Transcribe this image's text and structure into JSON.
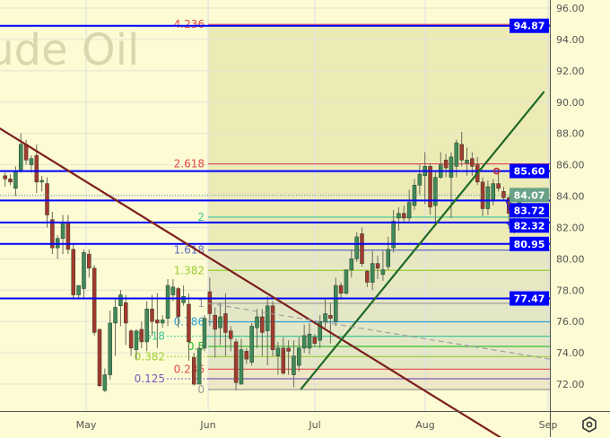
{
  "watermark": "Crude Oil",
  "colors": {
    "background": "#fdfbd3",
    "fib_zone": "#ecebb6",
    "up_candle": "#3f8a5a",
    "down_candle": "#a33a2e",
    "horizontal_level": "#0000ff",
    "last_price_box": "#6aa287",
    "down_trendline": "#7b1e1e",
    "up_trendline": "#1f6a24",
    "dashed_trendline": "#a0a0a0"
  },
  "chart_data": {
    "type": "candlestick",
    "title": "",
    "ylim": [
      71.0,
      96.6
    ],
    "y_ticks": [
      "96.00",
      "94.00",
      "92.00",
      "90.00",
      "88.00",
      "86.00",
      "84.00",
      "82.00",
      "80.00",
      "78.00",
      "76.00",
      "74.00",
      "72.00"
    ],
    "x_ticks": [
      "May",
      "Jun",
      "Jul",
      "Aug",
      "Sep"
    ],
    "grid": true,
    "last_price": "84.07",
    "horizontal_levels": [
      "94.87",
      "85.60",
      "83.72",
      "82.32",
      "80.95",
      "77.47"
    ],
    "fibonacci": {
      "start_price": 71.66,
      "end_price": 77.16,
      "levels": [
        {
          "label": "0",
          "ratio": 0,
          "color": "#9a9a9a"
        },
        {
          "label": "0.125",
          "ratio": 0.125,
          "color": "#7e57c2"
        },
        {
          "label": "0.236",
          "ratio": 0.236,
          "color": "#e04848"
        },
        {
          "label": "0.382",
          "ratio": 0.382,
          "color": "#9acd32"
        },
        {
          "label": "0.5",
          "ratio": 0.5,
          "color": "#22bb22"
        },
        {
          "label": "0.618",
          "ratio": 0.618,
          "color": "#3cc896"
        },
        {
          "label": "0.786",
          "ratio": 0.786,
          "color": "#2e9fd6"
        },
        {
          "label": "1",
          "ratio": 1,
          "color": "#9a9a9a"
        },
        {
          "label": "1.382",
          "ratio": 1.382,
          "color": "#9acd32"
        },
        {
          "label": "1.618",
          "ratio": 1.618,
          "color": "#5c6bc0"
        },
        {
          "label": "2",
          "ratio": 2,
          "color": "#3cc896"
        },
        {
          "label": "2.618",
          "ratio": 2.618,
          "color": "#e04848"
        },
        {
          "label": "4.236",
          "ratio": 4.236,
          "color": "#e04848"
        }
      ]
    },
    "trendlines": [
      {
        "name": "down",
        "from": [
          "2022-04-09",
          88.33
        ],
        "to": [
          "2022-08-20",
          68.6
        ],
        "style": "solid"
      },
      {
        "name": "up",
        "from": [
          "2022-06-27",
          71.66
        ],
        "to": [
          "2022-08-31",
          90.67
        ],
        "style": "solid"
      },
      {
        "name": "dashed",
        "from": [
          "2022-06-01",
          77.16
        ],
        "to": [
          "2022-09-16",
          73.0
        ],
        "style": "dashed"
      }
    ],
    "markers": [
      {
        "price": 85.6,
        "date": "2022-08-19",
        "color": "#c03030"
      },
      {
        "price": 80.95,
        "date": "2022-08-28",
        "color": "#1f6a24"
      },
      {
        "price": 77.47,
        "date": "2022-08-28",
        "color": "#1f6a24"
      }
    ],
    "candles_ohlc": [
      [
        85.3,
        85.5,
        84.6,
        85.1
      ],
      [
        85.1,
        85.4,
        84.7,
        84.9
      ],
      [
        84.5,
        85.9,
        84.0,
        85.6
      ],
      [
        85.6,
        88.0,
        85.5,
        87.3
      ],
      [
        87.3,
        87.6,
        86.0,
        86.3
      ],
      [
        86.0,
        86.6,
        85.5,
        86.4
      ],
      [
        86.6,
        87.3,
        84.2,
        84.9
      ],
      [
        84.9,
        85.3,
        84.3,
        85.0
      ],
      [
        84.8,
        85.2,
        82.0,
        82.8
      ],
      [
        82.5,
        83.0,
        80.3,
        80.7
      ],
      [
        80.7,
        81.5,
        80.0,
        81.3
      ],
      [
        81.3,
        82.8,
        80.3,
        82.3
      ],
      [
        82.3,
        82.8,
        80.3,
        80.6
      ],
      [
        80.6,
        81.0,
        77.4,
        77.7
      ],
      [
        77.7,
        78.3,
        77.4,
        78.3
      ],
      [
        78.1,
        80.6,
        77.4,
        80.4
      ],
      [
        80.3,
        80.6,
        78.8,
        79.4
      ],
      [
        79.4,
        79.6,
        75.1,
        75.3
      ],
      [
        75.5,
        75.5,
        71.8,
        71.9
      ],
      [
        71.6,
        73.0,
        71.5,
        72.6
      ],
      [
        72.6,
        76.7,
        72.3,
        75.9
      ],
      [
        75.9,
        77.5,
        73.8,
        76.9
      ],
      [
        77.0,
        78.0,
        75.7,
        77.7
      ],
      [
        77.2,
        77.7,
        74.5,
        75.9
      ],
      [
        75.4,
        75.5,
        73.8,
        74.3
      ],
      [
        74.2,
        75.5,
        73.6,
        75.4
      ],
      [
        75.5,
        76.0,
        74.3,
        74.7
      ],
      [
        74.7,
        77.3,
        74.1,
        76.8
      ],
      [
        76.8,
        77.7,
        75.1,
        76.0
      ],
      [
        76.1,
        77.8,
        74.3,
        75.9
      ],
      [
        75.9,
        76.4,
        75.6,
        76.1
      ],
      [
        76.2,
        78.7,
        75.7,
        78.3
      ],
      [
        77.7,
        78.7,
        77.3,
        78.2
      ],
      [
        78.1,
        78.2,
        75.6,
        76.3
      ],
      [
        77.2,
        78.3,
        77.0,
        77.6
      ],
      [
        77.1,
        77.8,
        73.5,
        74.7
      ],
      [
        73.7,
        74.0,
        71.9,
        72.0
      ],
      [
        72.0,
        74.5,
        72.0,
        74.3
      ],
      [
        74.3,
        76.4,
        74.1,
        76.2
      ],
      [
        77.9,
        78.8,
        75.7,
        76.5
      ],
      [
        76.4,
        76.9,
        73.7,
        75.5
      ],
      [
        75.6,
        77.2,
        74.5,
        76.3
      ],
      [
        76.5,
        77.8,
        73.8,
        75.3
      ],
      [
        75.4,
        75.7,
        74.1,
        74.9
      ],
      [
        74.7,
        74.9,
        71.6,
        72.1
      ],
      [
        72.0,
        74.9,
        72.0,
        74.2
      ],
      [
        74.1,
        74.3,
        73.3,
        73.6
      ],
      [
        73.4,
        75.9,
        73.2,
        75.7
      ],
      [
        75.6,
        76.8,
        74.3,
        76.3
      ],
      [
        76.3,
        76.8,
        73.8,
        75.3
      ],
      [
        75.4,
        77.6,
        73.2,
        77.0
      ],
      [
        77.0,
        77.3,
        73.8,
        74.2
      ],
      [
        73.8,
        74.7,
        72.6,
        74.3
      ],
      [
        74.3,
        75.0,
        72.6,
        72.7
      ],
      [
        74.3,
        74.8,
        72.6,
        74.1
      ],
      [
        72.6,
        74.8,
        71.8,
        73.8
      ],
      [
        73.2,
        75.0,
        72.8,
        74.3
      ],
      [
        74.3,
        75.8,
        74.0,
        75.1
      ],
      [
        74.3,
        75.9,
        73.9,
        75.2
      ],
      [
        75.0,
        75.2,
        74.4,
        74.6
      ],
      [
        74.8,
        76.4,
        74.3,
        76.0
      ],
      [
        76.0,
        77.5,
        75.6,
        76.5
      ],
      [
        76.4,
        77.2,
        74.6,
        76.2
      ],
      [
        76.0,
        78.8,
        75.7,
        78.3
      ],
      [
        78.3,
        78.5,
        77.4,
        77.8
      ],
      [
        77.8,
        79.3,
        77.7,
        79.3
      ],
      [
        79.3,
        80.6,
        78.8,
        80.0
      ],
      [
        80.0,
        81.7,
        79.8,
        81.4
      ],
      [
        81.6,
        82.0,
        79.5,
        79.7
      ],
      [
        79.2,
        79.3,
        78.2,
        78.5
      ],
      [
        78.5,
        80.5,
        78.0,
        79.7
      ],
      [
        79.7,
        80.2,
        78.7,
        79.4
      ],
      [
        79.0,
        80.5,
        78.6,
        79.3
      ],
      [
        79.5,
        81.4,
        79.3,
        80.6
      ],
      [
        80.7,
        83.1,
        80.4,
        82.4
      ],
      [
        82.6,
        83.3,
        81.8,
        82.9
      ],
      [
        82.9,
        83.4,
        82.4,
        82.6
      ],
      [
        82.6,
        84.4,
        82.4,
        83.6
      ],
      [
        83.4,
        85.1,
        83.1,
        84.7
      ],
      [
        84.7,
        86.0,
        84.1,
        85.4
      ],
      [
        85.3,
        86.8,
        83.5,
        85.9
      ],
      [
        85.9,
        86.1,
        82.8,
        83.3
      ],
      [
        83.4,
        85.6,
        82.1,
        85.2
      ],
      [
        85.2,
        86.8,
        85.1,
        86.0
      ],
      [
        86.3,
        86.7,
        85.2,
        85.8
      ],
      [
        85.2,
        86.8,
        82.6,
        86.5
      ],
      [
        85.9,
        87.6,
        85.2,
        87.4
      ],
      [
        87.3,
        88.1,
        85.9,
        86.3
      ],
      [
        86.1,
        87.1,
        85.3,
        86.3
      ],
      [
        86.4,
        86.8,
        85.3,
        85.9
      ],
      [
        86.0,
        86.5,
        84.7,
        84.9
      ],
      [
        84.9,
        85.2,
        82.7,
        83.2
      ],
      [
        83.2,
        85.0,
        82.8,
        84.6
      ],
      [
        83.8,
        85.1,
        83.4,
        84.8
      ],
      [
        84.8,
        85.7,
        84.3,
        84.5
      ],
      [
        84.3,
        84.6,
        83.7,
        83.9
      ],
      [
        83.9,
        84.0,
        81.9,
        82.9
      ],
      [
        82.9,
        83.4,
        81.6,
        82.7
      ],
      [
        82.7,
        84.5,
        82.3,
        84.0
      ]
    ]
  }
}
